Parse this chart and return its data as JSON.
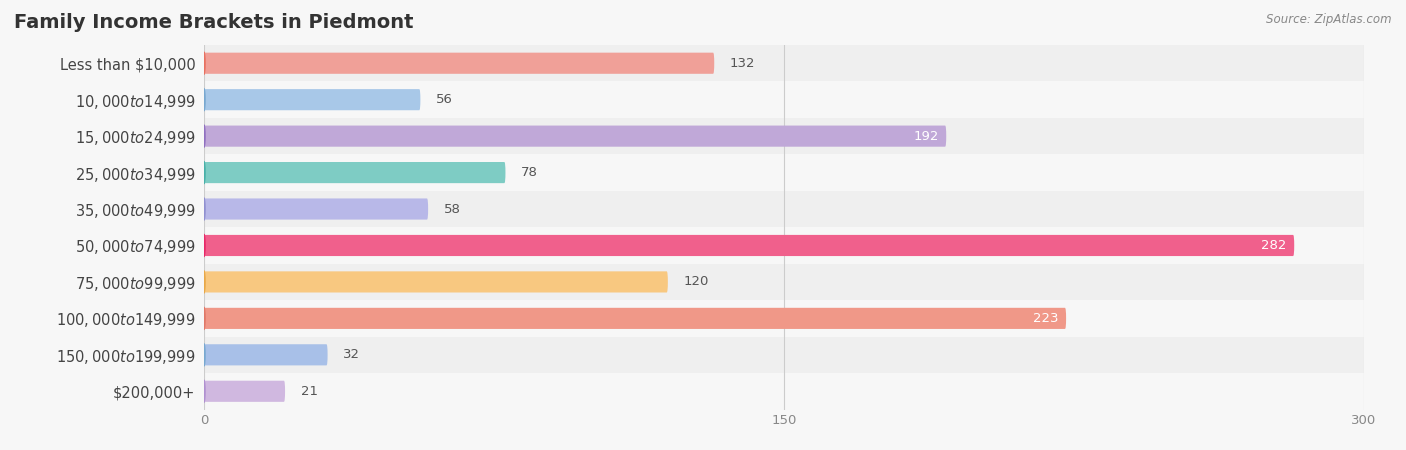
{
  "title": "Family Income Brackets in Piedmont",
  "source": "Source: ZipAtlas.com",
  "categories": [
    "Less than $10,000",
    "$10,000 to $14,999",
    "$15,000 to $24,999",
    "$25,000 to $34,999",
    "$35,000 to $49,999",
    "$50,000 to $74,999",
    "$75,000 to $99,999",
    "$100,000 to $149,999",
    "$150,000 to $199,999",
    "$200,000+"
  ],
  "values": [
    132,
    56,
    192,
    78,
    58,
    282,
    120,
    223,
    32,
    21
  ],
  "bar_colors": [
    "#F0A098",
    "#A8C8E8",
    "#C0A8D8",
    "#7ECCC4",
    "#B8B8E8",
    "#F0608C",
    "#F8C880",
    "#F09888",
    "#A8C0E8",
    "#D0B8E0"
  ],
  "dot_colors": [
    "#E87060",
    "#78A8D0",
    "#9070C0",
    "#48B0A8",
    "#9090D0",
    "#E82868",
    "#E8A848",
    "#E07868",
    "#78A8D0",
    "#B090D0"
  ],
  "xlim": [
    0,
    300
  ],
  "xticks": [
    0,
    150,
    300
  ],
  "bar_height": 0.58,
  "background_color": "#f7f7f7",
  "row_bg_light": "#f7f7f7",
  "row_bg_dark": "#efefef",
  "title_fontsize": 14,
  "label_fontsize": 10.5,
  "value_fontsize": 9.5,
  "source_fontsize": 8.5,
  "large_val_threshold": 150
}
